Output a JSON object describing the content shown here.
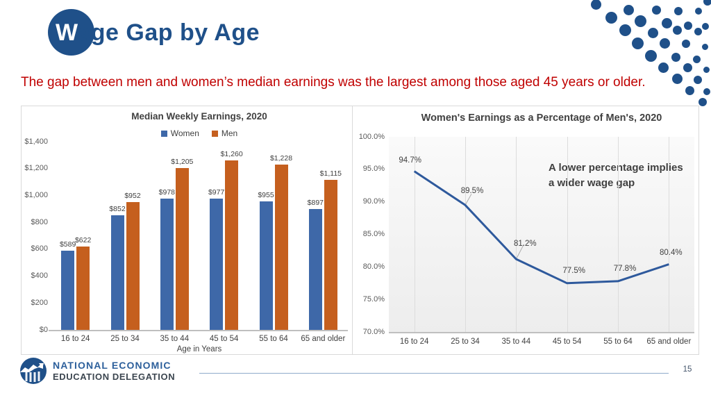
{
  "slide": {
    "title": "Wage Gap by Age",
    "title_first": "W",
    "title_rest": "age Gap by Age",
    "subtitle": "The gap between men and women’s median earnings was the largest among those aged 45 years or older."
  },
  "colors": {
    "accent_blue": "#1F5089",
    "subtitle_red": "#C00000",
    "bar_women": "#3E68A8",
    "bar_men": "#C55F1E",
    "line_blue": "#2E599C"
  },
  "chart_data": [
    {
      "type": "bar",
      "title": "Median Weekly Earnings, 2020",
      "categories": [
        "16 to 24",
        "25 to 34",
        "35 to 44",
        "45 to 54",
        "55 to 64",
        "65 and older"
      ],
      "series": [
        {
          "name": "Women",
          "color": "#3E68A8",
          "values": [
            589,
            852,
            978,
            977,
            955,
            897
          ],
          "value_labels": [
            "$589",
            "$852",
            "$978",
            "$977",
            "$955",
            "$897"
          ]
        },
        {
          "name": "Men",
          "color": "#C55F1E",
          "values": [
            622,
            952,
            1205,
            1260,
            1228,
            1115
          ],
          "value_labels": [
            "$622",
            "$952",
            "$1,205",
            "$1,260",
            "$1,228",
            "$1,115"
          ]
        }
      ],
      "xlabel": "Age in Years",
      "ylabel": "",
      "ylim": [
        0,
        1400
      ],
      "y_ticks": [
        "$1,400",
        "$1,200",
        "$1,000",
        "$800",
        "$600",
        "$400",
        "$200",
        "$0"
      ],
      "grid": false,
      "legend_position": "top"
    },
    {
      "type": "line",
      "title": "Women's Earnings as a Percentage of Men's, 2020",
      "categories": [
        "16 to 24",
        "25 to 34",
        "35 to 44",
        "45 to 54",
        "55 to 64",
        "65 and older"
      ],
      "values": [
        94.7,
        89.5,
        81.2,
        77.5,
        77.8,
        80.4
      ],
      "value_labels": [
        "94.7%",
        "89.5%",
        "81.2%",
        "77.5%",
        "77.8%",
        "80.4%"
      ],
      "annotation": "A lower percentage implies a wider wage gap",
      "xlabel": "",
      "ylabel": "",
      "ylim": [
        70,
        100
      ],
      "y_ticks": [
        "100.0%",
        "95.0%",
        "90.0%",
        "85.0%",
        "80.0%",
        "75.0%",
        "70.0%"
      ],
      "grid": "vertical"
    }
  ],
  "footer": {
    "org_line1": "NATIONAL ECONOMIC",
    "org_line2": "EDUCATION DELEGATION",
    "page_number": "15"
  }
}
